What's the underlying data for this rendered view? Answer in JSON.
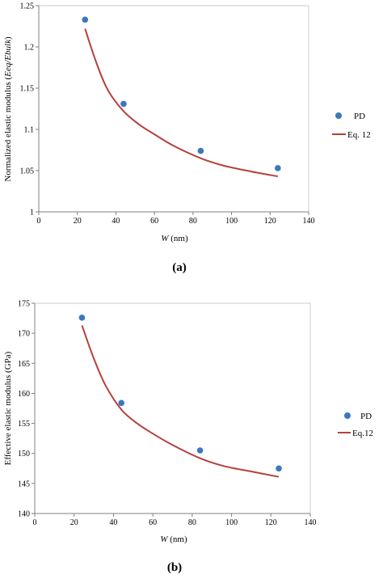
{
  "chart_data": [
    {
      "panel_label": "(a)",
      "type": "scatter",
      "xlabel_italic": "W",
      "xlabel_rest": " (nm)",
      "ylabel_plain": "Normalized elastic modulus (",
      "ylabel_italic": "Eeq/Ebulk",
      "ylabel_close": ")",
      "xlim": [
        0,
        140
      ],
      "ylim": [
        1,
        1.25
      ],
      "xticks": [
        0,
        20,
        40,
        60,
        80,
        100,
        120,
        140
      ],
      "yticks": [
        1,
        1.05,
        1.1,
        1.15,
        1.2,
        1.25
      ],
      "ytick_labels": [
        "1",
        "1.05",
        "1.1",
        "1.15",
        "1.2",
        "1.25"
      ],
      "series": [
        {
          "name": "PD",
          "kind": "scatter",
          "color": "#3b78bd",
          "x": [
            24,
            44,
            84,
            124
          ],
          "y": [
            1.233,
            1.131,
            1.074,
            1.053
          ]
        },
        {
          "name": "Eq. 12",
          "kind": "line",
          "color": "#b4413c",
          "x": [
            24,
            30,
            36,
            44,
            52,
            60,
            70,
            84,
            96,
            110,
            124
          ],
          "y": [
            1.222,
            1.18,
            1.147,
            1.122,
            1.106,
            1.094,
            1.08,
            1.065,
            1.056,
            1.049,
            1.043
          ]
        }
      ],
      "legend_position": "right"
    },
    {
      "panel_label": "(b)",
      "type": "scatter",
      "xlabel_italic": "W",
      "xlabel_rest": " (nm)",
      "ylabel_plain": "Effective elastic modulus (GPa)",
      "ylabel_italic": "",
      "ylabel_close": "",
      "xlim": [
        0,
        140
      ],
      "ylim": [
        140,
        175
      ],
      "xticks": [
        0,
        20,
        40,
        60,
        80,
        100,
        120,
        140
      ],
      "yticks": [
        140,
        145,
        150,
        155,
        160,
        165,
        170,
        175
      ],
      "ytick_labels": [
        "140",
        "145",
        "150",
        "155",
        "160",
        "165",
        "170",
        "175"
      ],
      "series": [
        {
          "name": "PD",
          "kind": "scatter",
          "color": "#3b78bd",
          "x": [
            24,
            44,
            84,
            124
          ],
          "y": [
            172.6,
            158.4,
            150.5,
            147.5
          ]
        },
        {
          "name": "Eq.12",
          "kind": "line",
          "color": "#b4413c",
          "x": [
            24,
            30,
            36,
            44,
            52,
            60,
            70,
            84,
            96,
            110,
            124
          ],
          "y": [
            171.3,
            165.8,
            161.3,
            157.3,
            155.0,
            153.3,
            151.4,
            149.2,
            147.9,
            147.0,
            146.1
          ]
        }
      ],
      "legend_position": "right"
    }
  ]
}
